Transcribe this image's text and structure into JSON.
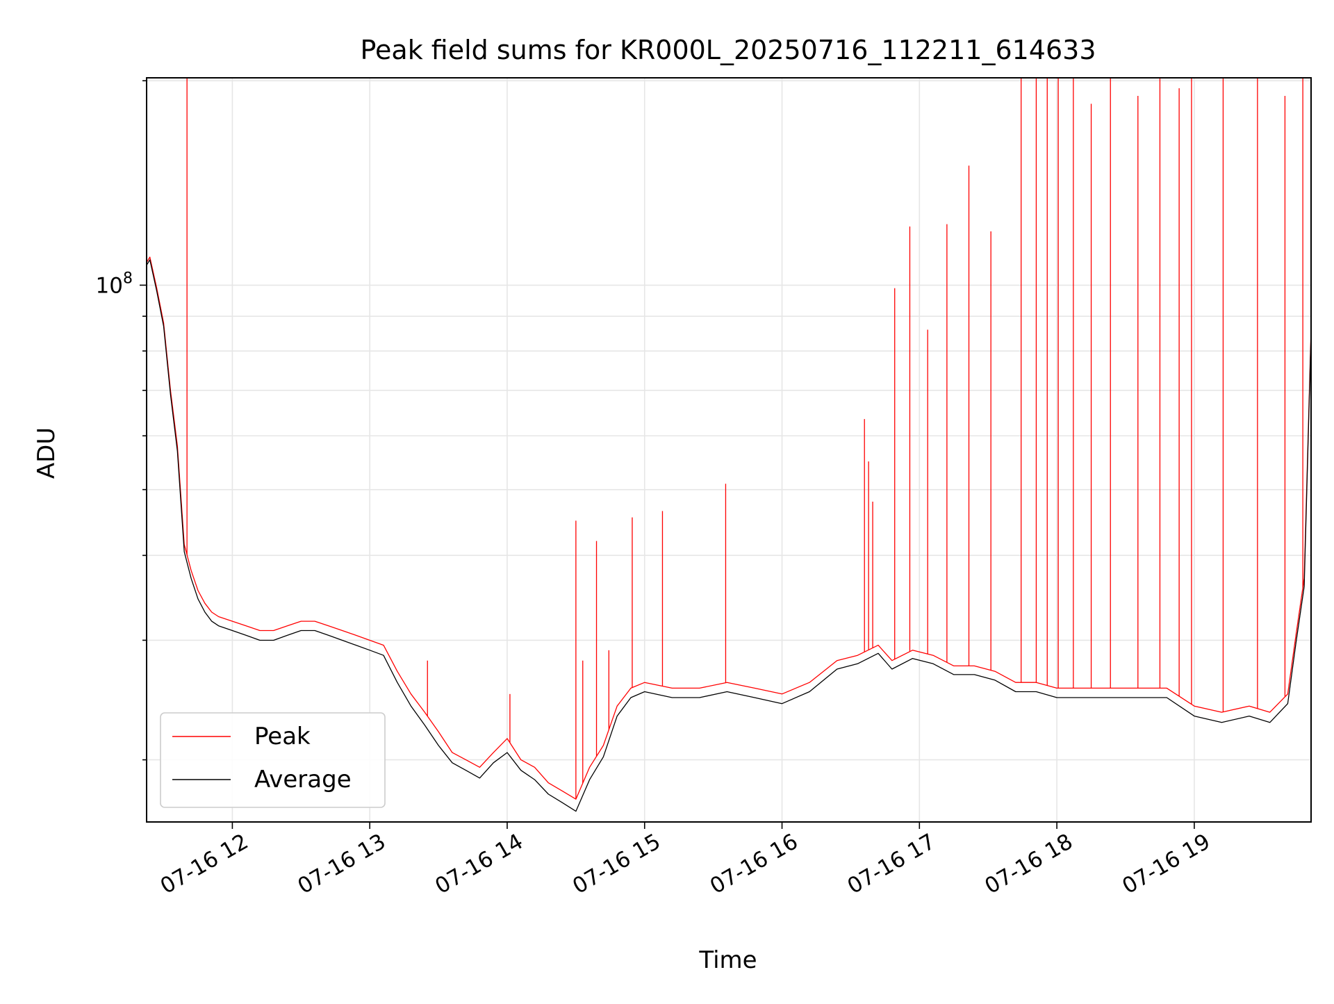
{
  "chart_data": {
    "type": "line",
    "title": "Peak field sums for KR000L_20250716_112211_614633",
    "xlabel": "Time",
    "ylabel": "ADU",
    "x_tick_labels": [
      "07-16 12",
      "07-16 13",
      "07-16 14",
      "07-16 15",
      "07-16 16",
      "07-16 17",
      "07-16 18",
      "07-16 19"
    ],
    "x_tick_hours": [
      12,
      13,
      14,
      15,
      16,
      17,
      18,
      19
    ],
    "xlim_hours": [
      11.376,
      19.85
    ],
    "y_scale": "log",
    "ylim": [
      16200000,
      202000000
    ],
    "y_major_ticks": [
      {
        "value": 100000000,
        "base": "10",
        "exp": "8"
      }
    ],
    "y_minor_ticks": [
      20000000,
      30000000,
      40000000,
      50000000,
      60000000,
      70000000,
      80000000,
      90000000,
      200000000
    ],
    "grid": true,
    "legend_position": "lower-left",
    "series": [
      {
        "name": "Peak",
        "color": "#ff0000",
        "points": [
          [
            11.376,
            108000000
          ],
          [
            11.4,
            110000000
          ],
          [
            11.45,
            99000000
          ],
          [
            11.5,
            88000000
          ],
          [
            11.55,
            70000000
          ],
          [
            11.6,
            58000000
          ],
          [
            11.65,
            41500000
          ],
          [
            11.7,
            38000000
          ],
          [
            11.75,
            35500000
          ],
          [
            11.8,
            34000000
          ],
          [
            11.85,
            33000000
          ],
          [
            11.9,
            32500000
          ],
          [
            12.0,
            32000000
          ],
          [
            12.1,
            31500000
          ],
          [
            12.2,
            31000000
          ],
          [
            12.3,
            31000000
          ],
          [
            12.4,
            31500000
          ],
          [
            12.5,
            32000000
          ],
          [
            12.6,
            32000000
          ],
          [
            12.7,
            31500000
          ],
          [
            12.8,
            31000000
          ],
          [
            12.9,
            30500000
          ],
          [
            13.0,
            30000000
          ],
          [
            13.1,
            29500000
          ],
          [
            13.2,
            27000000
          ],
          [
            13.3,
            25000000
          ],
          [
            13.4,
            23500000
          ],
          [
            13.5,
            22000000
          ],
          [
            13.6,
            20500000
          ],
          [
            13.7,
            20000000
          ],
          [
            13.8,
            19500000
          ],
          [
            13.9,
            20500000
          ],
          [
            14.0,
            21500000
          ],
          [
            14.1,
            20000000
          ],
          [
            14.2,
            19500000
          ],
          [
            14.3,
            18500000
          ],
          [
            14.4,
            18000000
          ],
          [
            14.5,
            17500000
          ],
          [
            14.6,
            19500000
          ],
          [
            14.7,
            21000000
          ],
          [
            14.8,
            24000000
          ],
          [
            14.9,
            25500000
          ],
          [
            15.0,
            26000000
          ],
          [
            15.2,
            25500000
          ],
          [
            15.4,
            25500000
          ],
          [
            15.6,
            26000000
          ],
          [
            15.8,
            25500000
          ],
          [
            16.0,
            25000000
          ],
          [
            16.2,
            26000000
          ],
          [
            16.4,
            28000000
          ],
          [
            16.55,
            28500000
          ],
          [
            16.7,
            29500000
          ],
          [
            16.8,
            28000000
          ],
          [
            16.95,
            29000000
          ],
          [
            17.1,
            28500000
          ],
          [
            17.25,
            27500000
          ],
          [
            17.4,
            27500000
          ],
          [
            17.55,
            27000000
          ],
          [
            17.7,
            26000000
          ],
          [
            17.85,
            26000000
          ],
          [
            18.0,
            25500000
          ],
          [
            18.2,
            25500000
          ],
          [
            18.4,
            25500000
          ],
          [
            18.6,
            25500000
          ],
          [
            18.8,
            25500000
          ],
          [
            19.0,
            24000000
          ],
          [
            19.2,
            23500000
          ],
          [
            19.4,
            24000000
          ],
          [
            19.55,
            23500000
          ],
          [
            19.68,
            25000000
          ],
          [
            19.74,
            30500000
          ],
          [
            19.8,
            37000000
          ],
          [
            19.85,
            86000000
          ]
        ],
        "spikes": [
          [
            11.67,
            202000000
          ],
          [
            13.42,
            28000000
          ],
          [
            14.02,
            25000000
          ],
          [
            14.5,
            45000000
          ],
          [
            14.55,
            28000000
          ],
          [
            14.65,
            42000000
          ],
          [
            14.74,
            29000000
          ],
          [
            14.91,
            45500000
          ],
          [
            15.13,
            46500000
          ],
          [
            15.59,
            51000000
          ],
          [
            16.6,
            63500000
          ],
          [
            16.63,
            55000000
          ],
          [
            16.66,
            48000000
          ],
          [
            16.82,
            99000000
          ],
          [
            16.93,
            122000000
          ],
          [
            17.06,
            86000000
          ],
          [
            17.2,
            123000000
          ],
          [
            17.36,
            150000000
          ],
          [
            17.52,
            120000000
          ],
          [
            17.74,
            202000000
          ],
          [
            17.85,
            202000000
          ],
          [
            17.93,
            202000000
          ],
          [
            18.01,
            202000000
          ],
          [
            18.12,
            202000000
          ],
          [
            18.25,
            185000000
          ],
          [
            18.39,
            202000000
          ],
          [
            18.59,
            190000000
          ],
          [
            18.75,
            202000000
          ],
          [
            18.89,
            195000000
          ],
          [
            18.98,
            202000000
          ],
          [
            19.21,
            202000000
          ],
          [
            19.46,
            202000000
          ],
          [
            19.66,
            190000000
          ],
          [
            19.79,
            202000000
          ]
        ]
      },
      {
        "name": "Average",
        "color": "#000000",
        "points": [
          [
            11.376,
            107000000
          ],
          [
            11.4,
            109000000
          ],
          [
            11.45,
            98000000
          ],
          [
            11.5,
            87000000
          ],
          [
            11.55,
            69000000
          ],
          [
            11.6,
            57000000
          ],
          [
            11.65,
            40500000
          ],
          [
            11.7,
            37000000
          ],
          [
            11.75,
            34500000
          ],
          [
            11.8,
            33000000
          ],
          [
            11.85,
            32000000
          ],
          [
            11.9,
            31500000
          ],
          [
            12.0,
            31000000
          ],
          [
            12.1,
            30500000
          ],
          [
            12.2,
            30000000
          ],
          [
            12.3,
            30000000
          ],
          [
            12.4,
            30500000
          ],
          [
            12.5,
            31000000
          ],
          [
            12.6,
            31000000
          ],
          [
            12.7,
            30500000
          ],
          [
            12.8,
            30000000
          ],
          [
            12.9,
            29500000
          ],
          [
            13.0,
            29000000
          ],
          [
            13.1,
            28500000
          ],
          [
            13.2,
            26000000
          ],
          [
            13.3,
            24000000
          ],
          [
            13.4,
            22500000
          ],
          [
            13.5,
            21000000
          ],
          [
            13.6,
            19800000
          ],
          [
            13.7,
            19300000
          ],
          [
            13.8,
            18800000
          ],
          [
            13.9,
            19800000
          ],
          [
            14.0,
            20500000
          ],
          [
            14.1,
            19300000
          ],
          [
            14.2,
            18700000
          ],
          [
            14.3,
            17800000
          ],
          [
            14.4,
            17300000
          ],
          [
            14.5,
            16800000
          ],
          [
            14.6,
            18700000
          ],
          [
            14.7,
            20200000
          ],
          [
            14.8,
            23200000
          ],
          [
            14.9,
            24700000
          ],
          [
            15.0,
            25200000
          ],
          [
            15.2,
            24700000
          ],
          [
            15.4,
            24700000
          ],
          [
            15.6,
            25200000
          ],
          [
            15.8,
            24700000
          ],
          [
            16.0,
            24200000
          ],
          [
            16.2,
            25200000
          ],
          [
            16.4,
            27200000
          ],
          [
            16.55,
            27700000
          ],
          [
            16.7,
            28700000
          ],
          [
            16.8,
            27200000
          ],
          [
            16.95,
            28200000
          ],
          [
            17.1,
            27700000
          ],
          [
            17.25,
            26700000
          ],
          [
            17.4,
            26700000
          ],
          [
            17.55,
            26200000
          ],
          [
            17.7,
            25200000
          ],
          [
            17.85,
            25200000
          ],
          [
            18.0,
            24700000
          ],
          [
            18.2,
            24700000
          ],
          [
            18.4,
            24700000
          ],
          [
            18.6,
            24700000
          ],
          [
            18.8,
            24700000
          ],
          [
            19.0,
            23200000
          ],
          [
            19.2,
            22700000
          ],
          [
            19.4,
            23200000
          ],
          [
            19.55,
            22700000
          ],
          [
            19.68,
            24200000
          ],
          [
            19.74,
            29700000
          ],
          [
            19.8,
            36000000
          ],
          [
            19.85,
            85000000
          ]
        ]
      }
    ]
  }
}
